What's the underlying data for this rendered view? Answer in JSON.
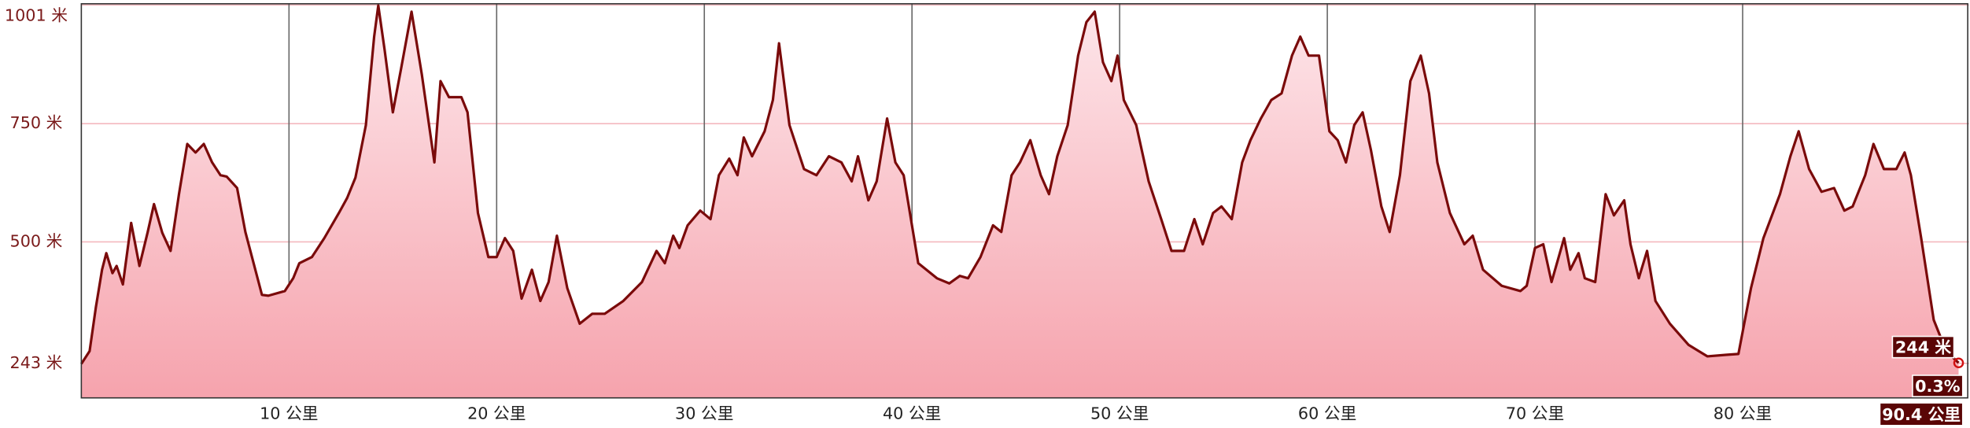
{
  "chart_data": {
    "type": "area",
    "xlim": [
      0,
      90.9
    ],
    "ylim": [
      170,
      1001
    ],
    "xticks": [
      {
        "value": 10,
        "label": "10 公里"
      },
      {
        "value": 20,
        "label": "20 公里"
      },
      {
        "value": 30,
        "label": "30 公里"
      },
      {
        "value": 40,
        "label": "40 公里"
      },
      {
        "value": 50,
        "label": "50 公里"
      },
      {
        "value": 60,
        "label": "60 公里"
      },
      {
        "value": 70,
        "label": "70 公里"
      },
      {
        "value": 80,
        "label": "80 公里"
      }
    ],
    "yticks": [
      {
        "value": 243,
        "label": "243 米"
      },
      {
        "value": 500,
        "label": "500 米"
      },
      {
        "value": 750,
        "label": "750 米"
      },
      {
        "value": 1001,
        "label": "1001 米"
      }
    ],
    "grid": true,
    "color": "#7a0a0a",
    "fill_top": "#fde6ea",
    "fill_bottom": "#f6a3ad",
    "x": [
      0,
      0.4,
      0.7,
      1.0,
      1.2,
      1.5,
      1.7,
      2.0,
      2.4,
      2.8,
      3.2,
      3.5,
      3.9,
      4.3,
      4.7,
      5.1,
      5.5,
      5.9,
      6.3,
      6.7,
      7.0,
      7.5,
      7.9,
      8.7,
      9.0,
      9.8,
      10.2,
      10.5,
      11.1,
      11.7,
      12.4,
      12.8,
      13.2,
      13.7,
      14.1,
      14.3,
      14.6,
      15.0,
      15.4,
      15.9,
      16.4,
      17.0,
      17.3,
      17.7,
      18.3,
      18.6,
      19.1,
      19.6,
      20.0,
      20.4,
      20.8,
      21.2,
      21.7,
      22.1,
      22.5,
      22.9,
      23.4,
      24.0,
      24.6,
      25.2,
      26.1,
      27.0,
      27.7,
      28.1,
      28.5,
      28.8,
      29.2,
      29.8,
      30.3,
      30.7,
      31.2,
      31.6,
      31.9,
      32.3,
      32.9,
      33.3,
      33.6,
      34.1,
      34.8,
      35.4,
      36.0,
      36.6,
      37.1,
      37.4,
      37.9,
      38.3,
      38.8,
      39.2,
      39.6,
      40.0,
      40.3,
      41.2,
      41.8,
      42.3,
      42.7,
      43.3,
      43.9,
      44.3,
      44.8,
      45.2,
      45.7,
      46.2,
      46.6,
      47.0,
      47.5,
      48.0,
      48.4,
      48.8,
      49.2,
      49.6,
      49.9,
      50.2,
      50.8,
      51.4,
      52.0,
      52.5,
      53.1,
      53.6,
      54.0,
      54.5,
      54.9,
      55.4,
      55.9,
      56.3,
      56.8,
      57.3,
      57.8,
      58.3,
      58.7,
      59.1,
      59.6,
      60.1,
      60.5,
      60.9,
      61.3,
      61.7,
      62.1,
      62.6,
      63.0,
      63.5,
      64.0,
      64.5,
      64.9,
      65.3,
      65.9,
      66.6,
      67.0,
      67.5,
      68.4,
      69.3,
      69.6,
      70.0,
      70.4,
      70.8,
      71.4,
      71.7,
      72.1,
      72.4,
      72.9,
      73.4,
      73.8,
      74.3,
      74.6,
      75.0,
      75.4,
      75.8,
      76.5,
      77.4,
      78.3,
      79.2,
      79.8,
      80.4,
      81.0,
      81.8,
      82.3,
      82.7,
      83.2,
      83.8,
      84.4,
      84.9,
      85.3,
      85.9,
      86.3,
      86.8,
      87.4,
      87.8,
      88.1,
      88.6,
      89.2,
      89.8,
      90.4
    ],
    "values": [
      242,
      269,
      362,
      441,
      476,
      434,
      449,
      410,
      540,
      449,
      521,
      580,
      519,
      481,
      601,
      707,
      689,
      707,
      668,
      641,
      638,
      614,
      521,
      388,
      386,
      396,
      423,
      455,
      468,
      508,
      561,
      593,
      636,
      747,
      934,
      1000,
      907,
      774,
      867,
      987,
      854,
      668,
      840,
      806,
      806,
      774,
      561,
      468,
      468,
      508,
      481,
      380,
      441,
      375,
      415,
      513,
      402,
      327,
      348,
      348,
      375,
      415,
      481,
      455,
      513,
      487,
      535,
      566,
      548,
      641,
      676,
      641,
      721,
      681,
      734,
      800,
      920,
      747,
      654,
      641,
      681,
      668,
      628,
      681,
      588,
      628,
      761,
      668,
      641,
      535,
      455,
      423,
      412,
      428,
      423,
      468,
      535,
      521,
      641,
      668,
      715,
      641,
      601,
      681,
      747,
      894,
      965,
      987,
      880,
      840,
      894,
      800,
      747,
      628,
      548,
      481,
      481,
      548,
      495,
      561,
      575,
      548,
      668,
      715,
      761,
      800,
      814,
      894,
      934,
      894,
      894,
      734,
      715,
      668,
      747,
      774,
      694,
      575,
      521,
      641,
      840,
      894,
      814,
      668,
      561,
      495,
      513,
      441,
      407,
      396,
      407,
      487,
      495,
      415,
      508,
      441,
      476,
      423,
      415,
      601,
      556,
      588,
      495,
      423,
      481,
      375,
      327,
      282,
      258,
      261,
      263,
      402,
      508,
      601,
      681,
      734,
      654,
      606,
      614,
      566,
      575,
      641,
      707,
      654,
      654,
      689,
      641,
      508,
      335,
      269,
      244
    ],
    "annotations": [
      "244 米",
      "0.3%",
      "90.4 公里"
    ]
  }
}
